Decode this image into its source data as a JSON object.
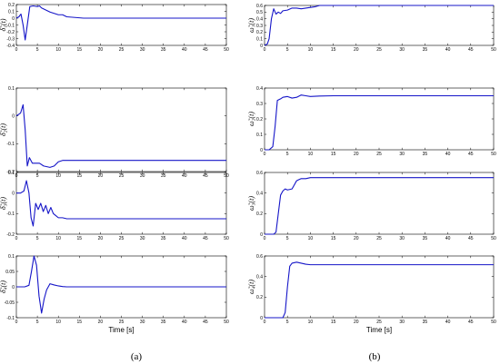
{
  "figure_labels": {
    "left": "(a)",
    "right": "(b)"
  },
  "chart_data": [
    {
      "type": "line",
      "id": "a1",
      "ylabel": "δ̃₁(t)",
      "xlabel": "",
      "xlim": [
        0,
        50
      ],
      "ylim": [
        -0.4,
        0.2
      ],
      "xticks": [
        0,
        5,
        10,
        15,
        20,
        25,
        30,
        35,
        40,
        45,
        50
      ],
      "yticks": [
        -0.4,
        -0.3,
        -0.2,
        -0.1,
        0,
        0.1,
        0.2
      ],
      "ytick_labels": [
        "-0.4",
        "-0.3",
        "-0.2",
        "-0.1",
        "0",
        "0.1",
        "0.2"
      ],
      "series": [
        {
          "x": [
            0,
            0.6,
            1.1,
            1.6,
            2.1,
            2.6,
            3.2,
            4,
            5,
            5.5,
            6,
            7,
            8,
            9,
            10,
            11,
            12,
            14,
            16,
            20,
            50
          ],
          "y": [
            0,
            0.02,
            0.06,
            -0.1,
            -0.32,
            -0.1,
            0.17,
            0.18,
            0.17,
            0.18,
            0.15,
            0.12,
            0.09,
            0.07,
            0.05,
            0.05,
            0.02,
            0.01,
            0,
            0,
            0
          ]
        }
      ]
    },
    {
      "type": "line",
      "id": "b1",
      "ylabel": "ω̃₁(t)",
      "xlabel": "",
      "xlim": [
        0,
        50
      ],
      "ylim": [
        0,
        0.6
      ],
      "xticks": [
        0,
        5,
        10,
        15,
        20,
        25,
        30,
        35,
        40,
        45,
        50
      ],
      "yticks": [
        0,
        0.1,
        0.2,
        0.3,
        0.4,
        0.5,
        0.6
      ],
      "ytick_labels": [
        "0",
        "0.1",
        "0.2",
        "0.3",
        "0.4",
        "0.5",
        "0.6"
      ],
      "series": [
        {
          "x": [
            0,
            0.6,
            1,
            1.5,
            2,
            2.5,
            3,
            3.5,
            4,
            5,
            6,
            7,
            8,
            9,
            10,
            11,
            12,
            13,
            15,
            20,
            50
          ],
          "y": [
            0,
            0.02,
            0.1,
            0.4,
            0.55,
            0.47,
            0.5,
            0.48,
            0.52,
            0.53,
            0.56,
            0.56,
            0.55,
            0.56,
            0.57,
            0.58,
            0.6,
            0.6,
            0.6,
            0.6,
            0.6
          ]
        }
      ]
    },
    {
      "type": "line",
      "id": "a2",
      "ylabel": "δ̃₂(t)",
      "xlabel": "",
      "xlim": [
        0,
        50
      ],
      "ylim": [
        -0.2,
        0.1
      ],
      "xticks": [
        0,
        5,
        10,
        15,
        20,
        25,
        30,
        35,
        40,
        45,
        50
      ],
      "yticks": [
        -0.2,
        -0.1,
        0,
        0.1
      ],
      "ytick_labels": [
        "-0.2",
        "-0.1",
        "0",
        "0.1"
      ],
      "series": [
        {
          "x": [
            0,
            1,
            1.6,
            2.1,
            2.6,
            3.1,
            3.8,
            4.5,
            5.5,
            6.5,
            8,
            9,
            10,
            11,
            12,
            13,
            15,
            20,
            50
          ],
          "y": [
            0,
            0.01,
            0.04,
            -0.05,
            -0.18,
            -0.15,
            -0.17,
            -0.17,
            -0.17,
            -0.18,
            -0.185,
            -0.18,
            -0.165,
            -0.16,
            -0.16,
            -0.16,
            -0.16,
            -0.16,
            -0.16
          ]
        }
      ]
    },
    {
      "type": "line",
      "id": "b2",
      "ylabel": "ω̃₂(t)",
      "xlabel": "",
      "xlim": [
        0,
        50
      ],
      "ylim": [
        0,
        0.4
      ],
      "xticks": [
        0,
        5,
        10,
        15,
        20,
        25,
        30,
        35,
        40,
        45,
        50
      ],
      "yticks": [
        0,
        0.1,
        0.2,
        0.3,
        0.4
      ],
      "ytick_labels": [
        "0",
        "0.1",
        "0.2",
        "0.3",
        "0.4"
      ],
      "series": [
        {
          "x": [
            0,
            1,
            1.8,
            2.3,
            2.8,
            3.5,
            4,
            5,
            6,
            7,
            8,
            9,
            10,
            12,
            15,
            20,
            50
          ],
          "y": [
            0,
            0,
            0.02,
            0.15,
            0.32,
            0.33,
            0.34,
            0.345,
            0.335,
            0.34,
            0.355,
            0.35,
            0.345,
            0.348,
            0.35,
            0.35,
            0.35
          ]
        }
      ]
    },
    {
      "type": "line",
      "id": "a3",
      "ylabel": "δ̃₃(t)",
      "xlabel": "",
      "xlim": [
        0,
        50
      ],
      "ylim": [
        -0.2,
        0.1
      ],
      "xticks": [
        0,
        5,
        10,
        15,
        20,
        25,
        30,
        35,
        40,
        45,
        50
      ],
      "yticks": [
        -0.2,
        -0.1,
        0,
        0.1
      ],
      "ytick_labels": [
        "-0.2",
        "-0.1",
        "0",
        "0.1"
      ],
      "series": [
        {
          "x": [
            0,
            1,
            1.8,
            2.4,
            3,
            3.5,
            4,
            4.6,
            5.2,
            5.8,
            6.4,
            7,
            7.6,
            8.2,
            8.8,
            9.4,
            10,
            11,
            12,
            14,
            20,
            50
          ],
          "y": [
            0,
            0,
            0.01,
            0.06,
            0,
            -0.12,
            -0.16,
            -0.05,
            -0.08,
            -0.05,
            -0.09,
            -0.06,
            -0.1,
            -0.07,
            -0.1,
            -0.11,
            -0.12,
            -0.12,
            -0.125,
            -0.125,
            -0.125,
            -0.125
          ]
        }
      ]
    },
    {
      "type": "line",
      "id": "b3",
      "ylabel": "ω̃₃(t)",
      "xlabel": "",
      "xlim": [
        0,
        50
      ],
      "ylim": [
        0,
        0.6
      ],
      "xticks": [
        0,
        5,
        10,
        15,
        20,
        25,
        30,
        35,
        40,
        45,
        50
      ],
      "yticks": [
        0,
        0.2,
        0.4,
        0.6
      ],
      "ytick_labels": [
        "0",
        "0.2",
        "0.4",
        "0.6"
      ],
      "series": [
        {
          "x": [
            0,
            2,
            2.5,
            3,
            3.5,
            4,
            4.5,
            5,
            6,
            6.5,
            7,
            7.5,
            8,
            9,
            10,
            12,
            15,
            20,
            50
          ],
          "y": [
            0,
            0,
            0.02,
            0.2,
            0.38,
            0.42,
            0.44,
            0.43,
            0.44,
            0.48,
            0.52,
            0.53,
            0.54,
            0.54,
            0.55,
            0.55,
            0.55,
            0.55,
            0.55
          ]
        }
      ]
    },
    {
      "type": "line",
      "id": "a4",
      "ylabel": "δ̃₄(t)",
      "xlabel": "Time [s]",
      "xlim": [
        0,
        50
      ],
      "ylim": [
        -0.1,
        0.1
      ],
      "xticks": [
        0,
        5,
        10,
        15,
        20,
        25,
        30,
        35,
        40,
        45,
        50
      ],
      "yticks": [
        -0.1,
        -0.05,
        0,
        0.05,
        0.1
      ],
      "ytick_labels": [
        "-0.1",
        "-0.05",
        "0",
        "0.05",
        "0.1"
      ],
      "series": [
        {
          "x": [
            0,
            2,
            3,
            3.6,
            4.2,
            4.8,
            5.4,
            6,
            6.6,
            7.2,
            8,
            9,
            10,
            11,
            12,
            15,
            20,
            50
          ],
          "y": [
            0,
            0,
            0.005,
            0.05,
            0.1,
            0.07,
            -0.03,
            -0.085,
            -0.04,
            -0.01,
            0.01,
            0.006,
            0.003,
            0.001,
            0,
            0,
            0,
            0
          ]
        }
      ]
    },
    {
      "type": "line",
      "id": "b4",
      "ylabel": "ω̃₄(t)",
      "xlabel": "Time [s]",
      "xlim": [
        0,
        50
      ],
      "ylim": [
        0,
        0.6
      ],
      "xticks": [
        0,
        5,
        10,
        15,
        20,
        25,
        30,
        35,
        40,
        45,
        50
      ],
      "yticks": [
        0,
        0.2,
        0.4,
        0.6
      ],
      "ytick_labels": [
        "0",
        "0.2",
        "0.4",
        "0.6"
      ],
      "series": [
        {
          "x": [
            0,
            4,
            4.5,
            5,
            5.5,
            6,
            7,
            8,
            9,
            10,
            12,
            15,
            20,
            50
          ],
          "y": [
            0,
            0,
            0.05,
            0.3,
            0.5,
            0.53,
            0.54,
            0.53,
            0.52,
            0.515,
            0.515,
            0.515,
            0.515,
            0.515
          ]
        }
      ]
    }
  ]
}
